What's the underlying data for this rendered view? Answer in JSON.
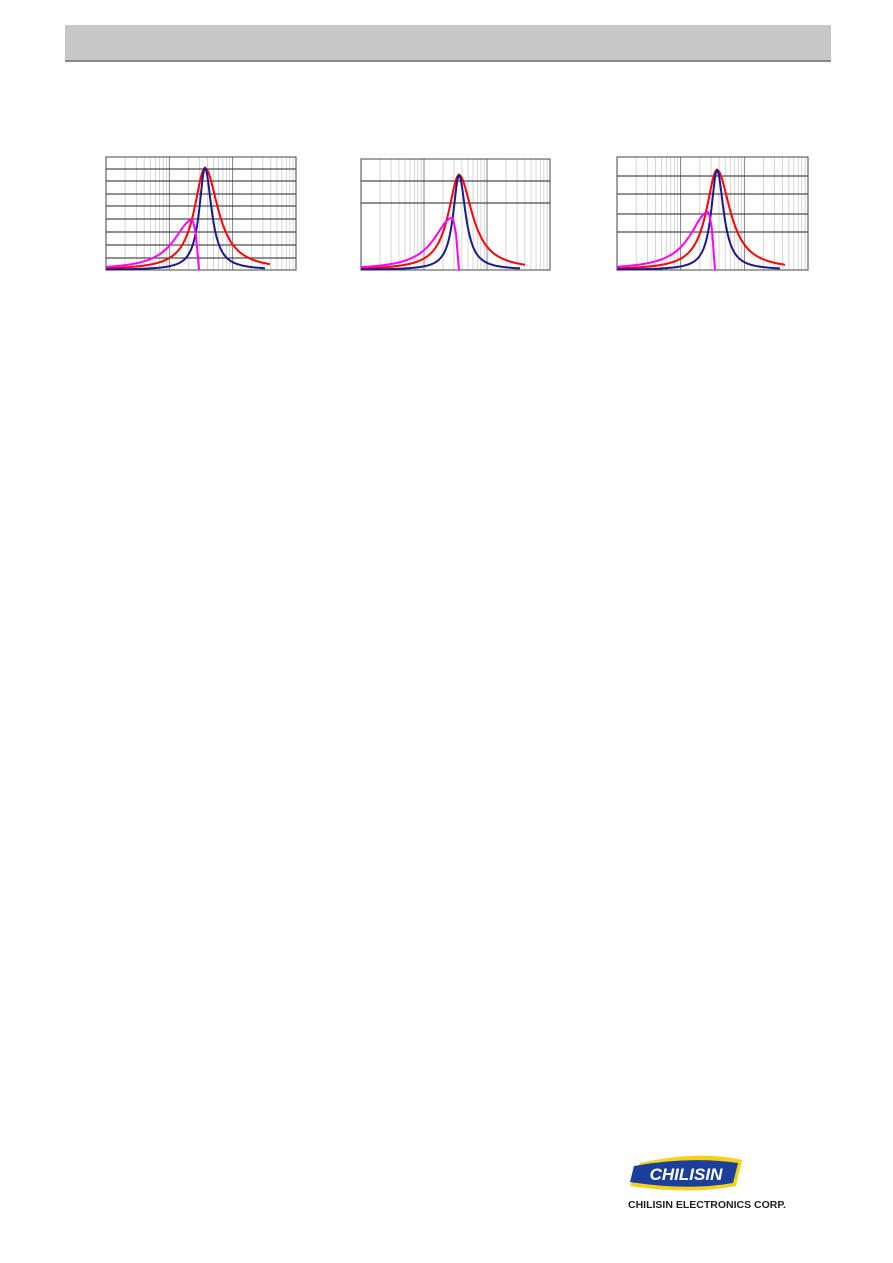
{
  "logo": {
    "brand": "CHILISIN",
    "company": "CHILISIN ELECTRONICS CORP."
  }
}
